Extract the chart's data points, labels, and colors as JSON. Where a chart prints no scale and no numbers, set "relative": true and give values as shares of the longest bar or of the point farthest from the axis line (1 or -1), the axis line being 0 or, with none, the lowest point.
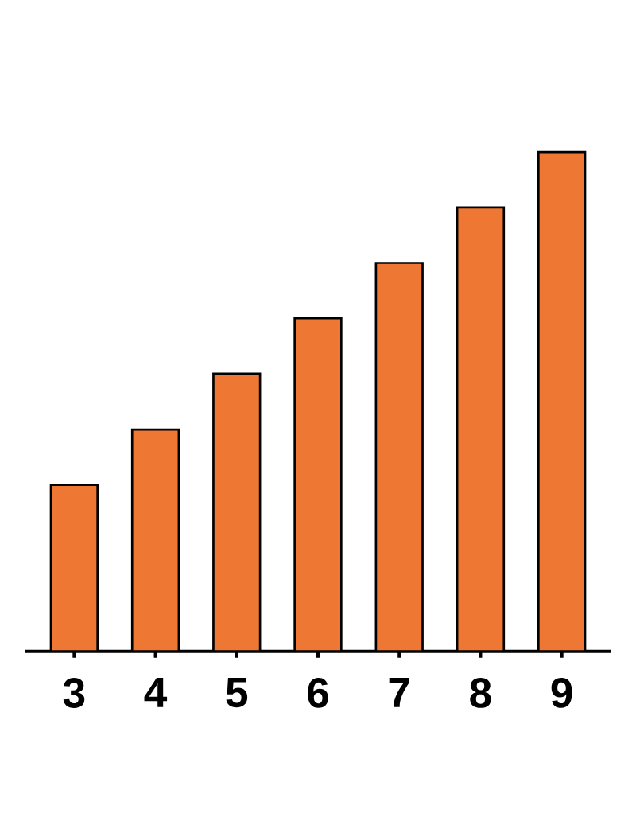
{
  "chart_data": {
    "type": "bar",
    "relative": true,
    "categories": [
      "3",
      "4",
      "5",
      "6",
      "7",
      "8",
      "9"
    ],
    "values": [
      0.333,
      0.444,
      0.556,
      0.667,
      0.778,
      0.889,
      1
    ],
    "color": "#ee7733"
  }
}
